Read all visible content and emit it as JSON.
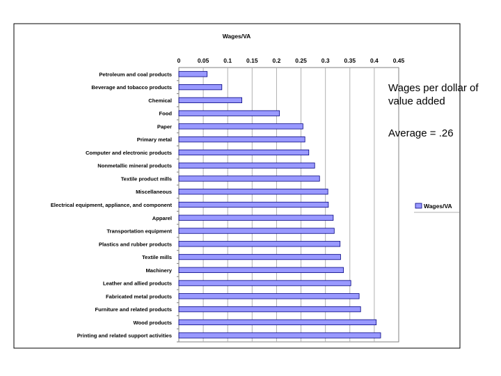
{
  "chart_data": {
    "type": "bar",
    "orientation": "horizontal",
    "title": "Wages/VA",
    "xlim": [
      0,
      0.45
    ],
    "x_ticks": [
      "0",
      "0.05",
      "0.1",
      "0.15",
      "0.2",
      "0.25",
      "0.3",
      "0.35",
      "0.4",
      "0.45"
    ],
    "x_tick_values": [
      0,
      0.05,
      0.1,
      0.15,
      0.2,
      0.25,
      0.3,
      0.35,
      0.4,
      0.45
    ],
    "grid": true,
    "legend": {
      "position": "right",
      "entries": [
        "Wages/VA"
      ]
    },
    "categories": [
      "Petroleum and coal products",
      "Beverage and tobacco products",
      "Chemical",
      "Food",
      "Paper",
      "Primary metal",
      "Computer and electronic products",
      "Nonmetallic mineral products",
      "Textile product mills",
      "Miscellaneous",
      "Electrical equipment, appliance, and component",
      "Apparel",
      "Transportation equipment",
      "Plastics and rubber products",
      "Textile mills",
      "Machinery",
      "Leather and allied products",
      "Fabricated metal products",
      "Furniture and related products",
      "Wood products",
      "Printing and related support activities"
    ],
    "series": [
      {
        "name": "Wages/VA",
        "values": [
          0.058,
          0.088,
          0.129,
          0.206,
          0.254,
          0.258,
          0.266,
          0.278,
          0.288,
          0.305,
          0.306,
          0.316,
          0.318,
          0.33,
          0.331,
          0.337,
          0.352,
          0.369,
          0.372,
          0.404,
          0.413
        ]
      }
    ]
  },
  "annotations": {
    "wages_note": "Wages per dollar of value added",
    "average_note": "Average = .26"
  },
  "colors": {
    "bar_fill": "#9999ff",
    "bar_edge": "#000080",
    "grid": "#b0b0b0"
  }
}
